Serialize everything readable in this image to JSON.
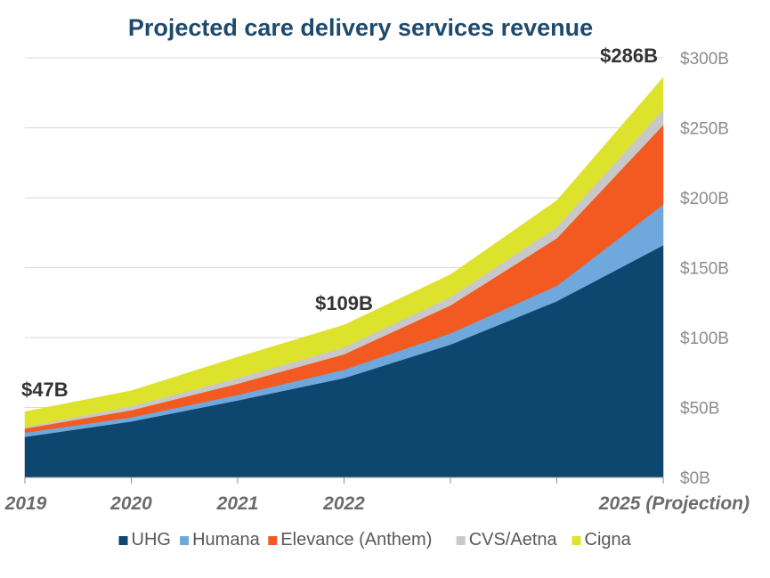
{
  "chart_data": {
    "type": "area",
    "stacked": true,
    "title": "Projected care delivery services revenue",
    "xlabel": "",
    "ylabel": "",
    "ylim": [
      0,
      300
    ],
    "y_ticks": [
      {
        "value": 0,
        "label": "$0B"
      },
      {
        "value": 50,
        "label": "$50B"
      },
      {
        "value": 100,
        "label": "$100B"
      },
      {
        "value": 150,
        "label": "$150B"
      },
      {
        "value": 200,
        "label": "$200B"
      },
      {
        "value": 250,
        "label": "$250B"
      },
      {
        "value": 300,
        "label": "$300B"
      }
    ],
    "y_axis_side": "right",
    "grid": true,
    "x": [
      0,
      1,
      2,
      3,
      4,
      5,
      6
    ],
    "x_ticks": [
      {
        "x": 0,
        "label": "2019"
      },
      {
        "x": 1,
        "label": "2020"
      },
      {
        "x": 2,
        "label": "2021"
      },
      {
        "x": 3,
        "label": "2022"
      },
      {
        "x": 4,
        "label": ""
      },
      {
        "x": 5,
        "label": ""
      },
      {
        "x": 6,
        "label": "2025 (Projection)"
      }
    ],
    "series": [
      {
        "name": "UHG",
        "color": "#0d466e",
        "values": [
          29,
          40,
          55,
          71,
          95,
          126,
          166
        ]
      },
      {
        "name": "Humana",
        "color": "#6fa8dc",
        "values": [
          3,
          3,
          4,
          6,
          8,
          11,
          29
        ]
      },
      {
        "name": "Elevance (Anthem)",
        "color": "#f25a22",
        "values": [
          3,
          5,
          8,
          11,
          20,
          34,
          57
        ]
      },
      {
        "name": "CVS/Aetna",
        "color": "#c8c8c8",
        "values": [
          1,
          3,
          4,
          5,
          6,
          8,
          11
        ]
      },
      {
        "name": "Cigna",
        "color": "#dde32c",
        "values": [
          11,
          11,
          15,
          16,
          16,
          19,
          23
        ]
      }
    ],
    "annotations": [
      {
        "x": 0,
        "text": "$47B"
      },
      {
        "x": 3,
        "text": "$109B"
      },
      {
        "x": 6,
        "text": "$286B"
      }
    ],
    "legend": {
      "position": "bottom"
    }
  }
}
